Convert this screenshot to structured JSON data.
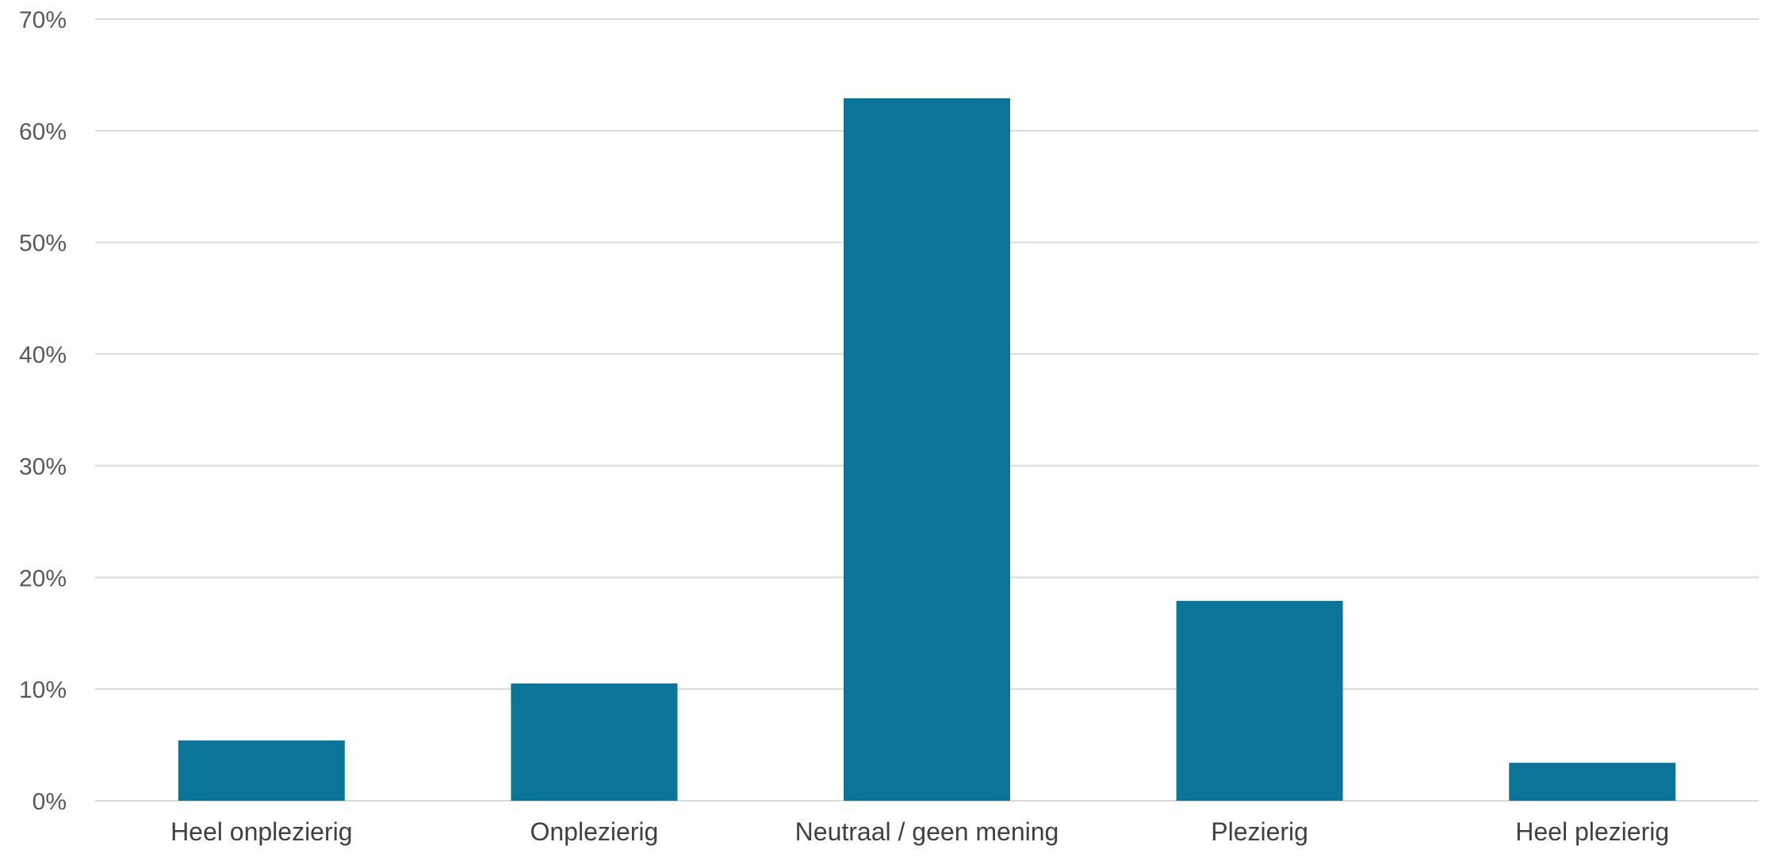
{
  "chart_data": {
    "type": "bar",
    "categories": [
      "Heel onplezierig",
      "Onplezierig",
      "Neutraal / geen mening",
      "Plezierig",
      "Heel plezierig"
    ],
    "values": [
      5.4,
      10.5,
      62.9,
      17.9,
      3.4
    ],
    "value_unit": "%",
    "ylim": [
      0,
      70
    ],
    "yticks": [
      0,
      10,
      20,
      30,
      40,
      50,
      60,
      70
    ],
    "ytick_labels": [
      "0%",
      "10%",
      "20%",
      "30%",
      "40%",
      "50%",
      "60%",
      "70%"
    ],
    "title": "",
    "xlabel": "",
    "ylabel": "",
    "grid": true,
    "legend": "none",
    "bar_color": "#0a7499"
  }
}
